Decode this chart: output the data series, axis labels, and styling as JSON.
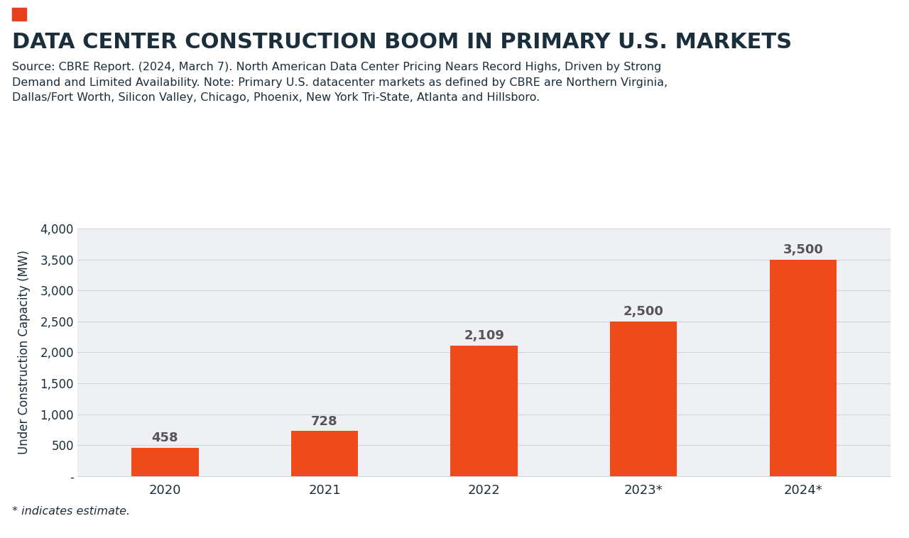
{
  "title": "DATA CENTER CONSTRUCTION BOOM IN PRIMARY U.S. MARKETS",
  "source_text": "Source: CBRE Report. (2024, March 7). North American Data Center Pricing Nears Record Highs, Driven by Strong\nDemand and Limited Availability. Note: Primary U.S. datacenter markets as defined by CBRE are Northern Virginia,\nDallas/Fort Worth, Silicon Valley, Chicago, Phoenix, New York Tri-State, Atlanta and Hillsboro.",
  "footnote": "* indicates estimate.",
  "categories": [
    "2020",
    "2021",
    "2022",
    "2023*",
    "2024*"
  ],
  "values": [
    458,
    728,
    2109,
    2500,
    3500
  ],
  "bar_color": "#F04A1A",
  "ylabel": "Under Construction Capacity (MW)",
  "ylim": [
    0,
    4000
  ],
  "yticks": [
    0,
    500,
    1000,
    1500,
    2000,
    2500,
    3000,
    3500,
    4000
  ],
  "ytick_labels": [
    "-",
    "500",
    "1,000",
    "1,500",
    "2,000",
    "2,500",
    "3,000",
    "3,500",
    "4,000"
  ],
  "title_color": "#1a2e3b",
  "title_fontsize": 22,
  "source_fontsize": 11.5,
  "footnote_fontsize": 11.5,
  "label_fontsize": 13,
  "ylabel_fontsize": 12,
  "xtick_fontsize": 13,
  "ytick_fontsize": 12,
  "background_color": "#eef0f4",
  "figure_bg": "#ffffff",
  "accent_color": "#E8401C",
  "grid_color": "#d0d3d8",
  "value_label_color": "#555555"
}
